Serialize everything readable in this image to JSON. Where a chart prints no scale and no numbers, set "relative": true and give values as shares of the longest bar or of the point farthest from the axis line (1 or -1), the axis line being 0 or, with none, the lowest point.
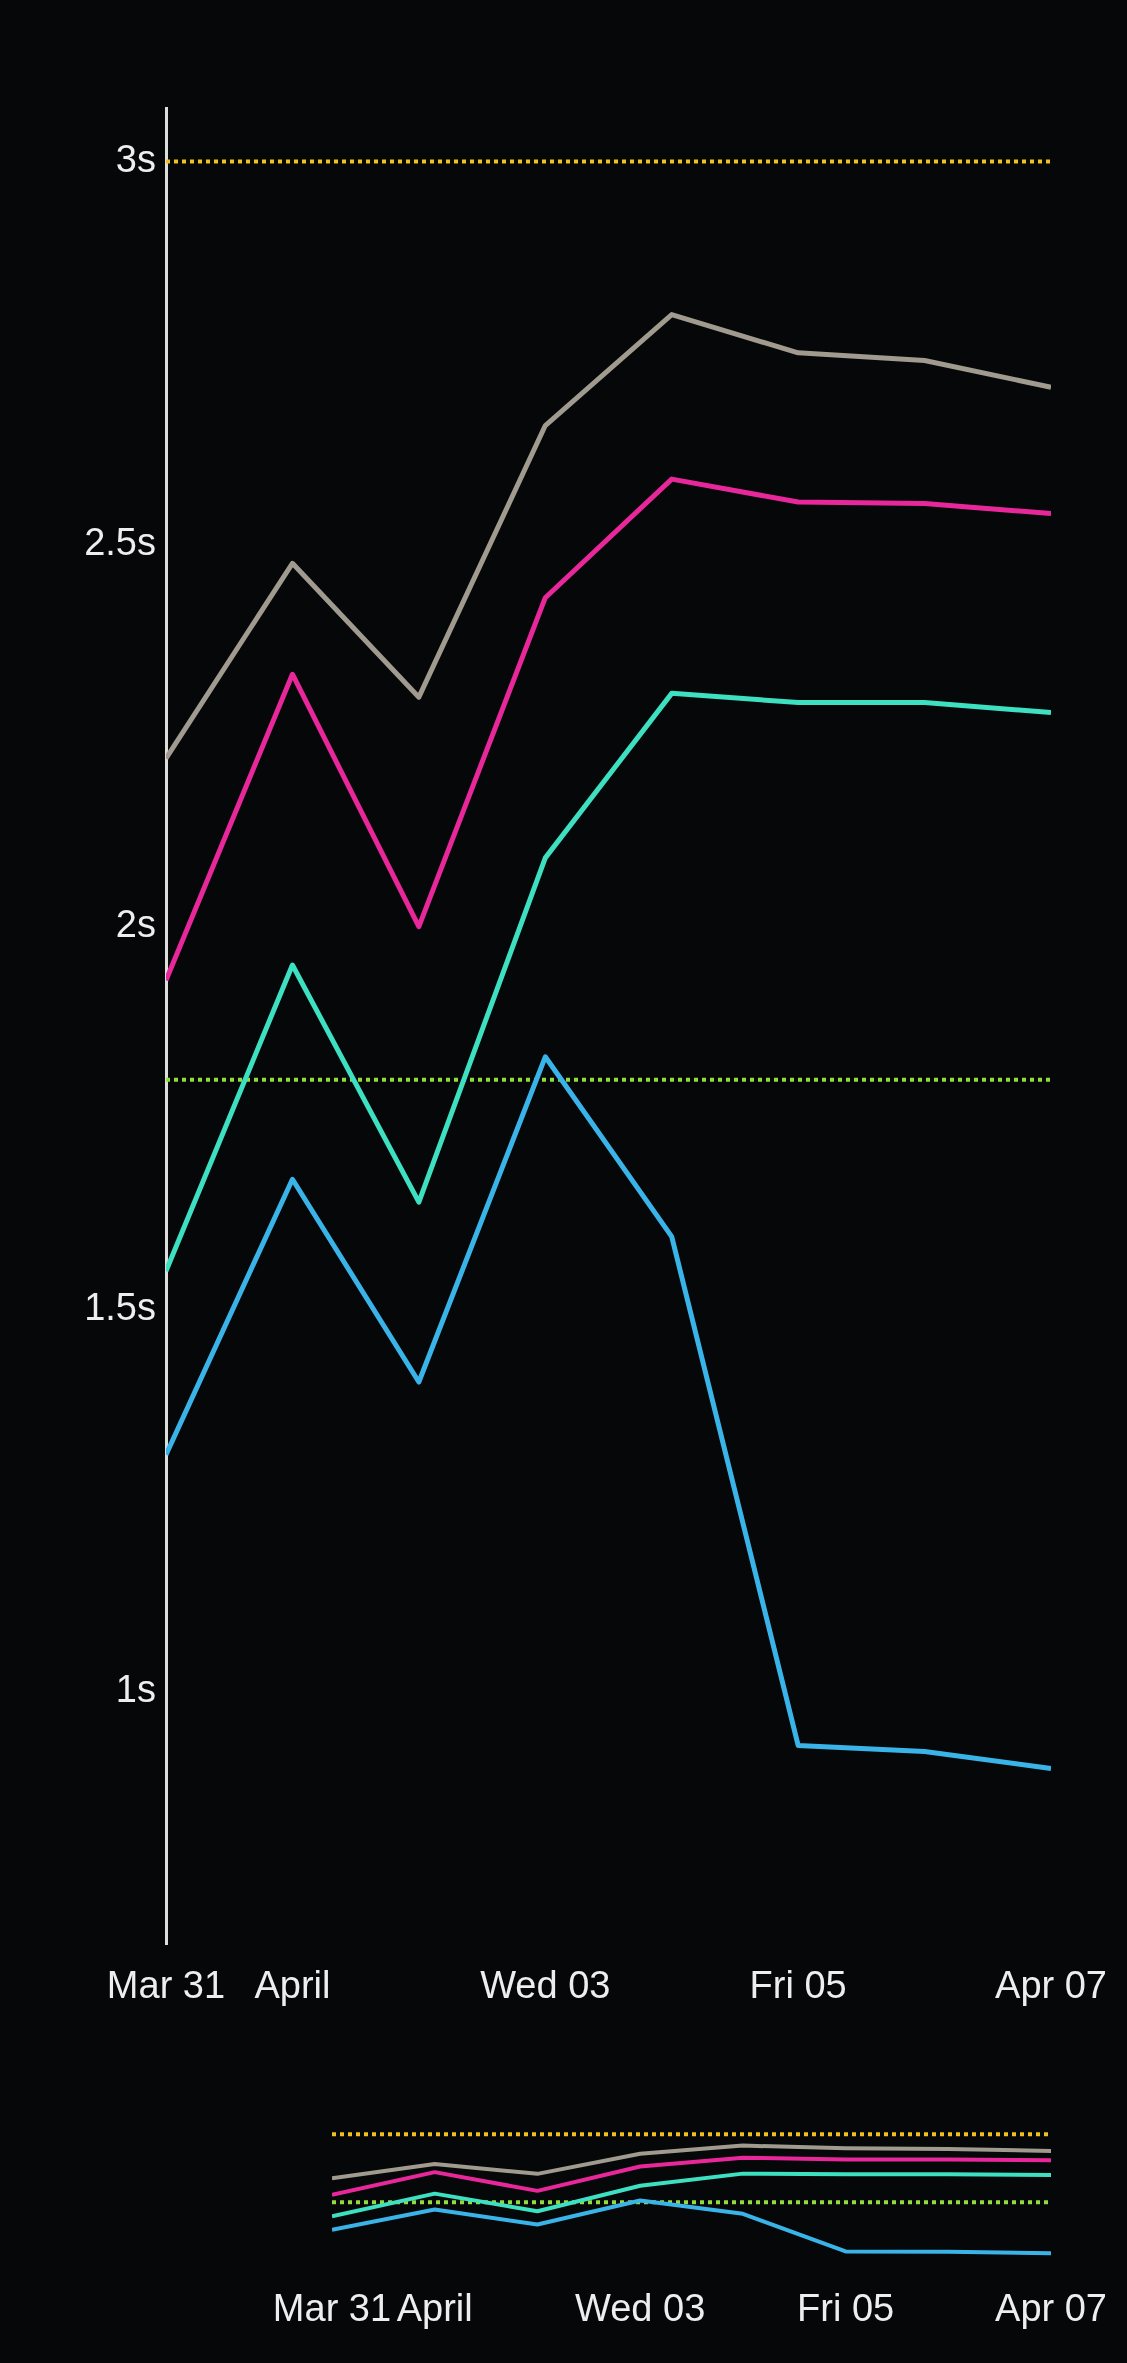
{
  "chart_data": [
    {
      "type": "line",
      "x": [
        "--03-31",
        "--04-01",
        "--04-02",
        "--04-03",
        "--04-04",
        "--04-05",
        "--04-06",
        "--04-07"
      ],
      "series": [
        {
          "color": "#a09a8f",
          "values": [
            2.22,
            2.475,
            2.3,
            2.655,
            2.8,
            2.75,
            2.74,
            2.705
          ]
        },
        {
          "color": "#e8289a",
          "values": [
            1.93,
            2.33,
            2.0,
            2.43,
            2.585,
            2.555,
            2.553,
            2.54
          ]
        },
        {
          "color": "#3de0c0",
          "values": [
            1.55,
            1.95,
            1.64,
            2.09,
            2.305,
            2.293,
            2.293,
            2.28
          ]
        },
        {
          "color": "#3ab4e8",
          "values": [
            1.31,
            1.67,
            1.405,
            1.83,
            1.595,
            0.93,
            0.922,
            0.9
          ]
        }
      ],
      "xlim": [
        "--03-31",
        "--04-07"
      ],
      "xticks": [
        {
          "value": "--03-31",
          "label": "Mar 31"
        },
        {
          "value": "--04-01",
          "label": "April"
        },
        {
          "value": "--04-03",
          "label": "Wed 03"
        },
        {
          "value": "--04-05",
          "label": "Fri 05"
        },
        {
          "value": "--04-07",
          "label": "Apr 07"
        }
      ],
      "ylim": [
        0.67,
        3.07
      ],
      "yticks": [
        {
          "value": 1,
          "label": "1s"
        },
        {
          "value": 1.5,
          "label": "1.5s"
        },
        {
          "value": 2,
          "label": "2s"
        },
        {
          "value": 2.5,
          "label": "2.5s"
        },
        {
          "value": 3,
          "label": "3s"
        }
      ],
      "ref_lines": [
        {
          "axis": "y",
          "value": 3,
          "color": "#f0c020",
          "line_style": "dotted"
        },
        {
          "axis": "y",
          "value": 1.8,
          "color": "#8fdc3c",
          "line_style": "dotted"
        }
      ],
      "grid": false,
      "legend": false,
      "marker": "none",
      "line_style": "solid"
    },
    {
      "type": "line",
      "x": [
        "--03-31",
        "--04-01",
        "--04-02",
        "--04-03",
        "--04-04",
        "--04-05",
        "--04-06",
        "--04-07"
      ],
      "series": [
        {
          "color": "#a09a8f",
          "values": [
            0.695,
            0.829,
            0.737,
            0.924,
            1,
            0.974,
            0.968,
            0.95
          ]
        },
        {
          "color": "#e8289a",
          "values": [
            0.542,
            0.753,
            0.579,
            0.805,
            0.887,
            0.871,
            0.87,
            0.863
          ]
        },
        {
          "color": "#3de0c0",
          "values": [
            0.342,
            0.553,
            0.389,
            0.626,
            0.739,
            0.733,
            0.733,
            0.726
          ]
        },
        {
          "color": "#3ab4e8",
          "values": [
            0.216,
            0.405,
            0.266,
            0.489,
            0.366,
            0.016,
            0.012,
            0
          ]
        }
      ],
      "xlim": [
        "--03-31",
        "--04-07"
      ],
      "xticks": [
        {
          "value": "--03-31",
          "label": "Mar 31"
        },
        {
          "value": "--04-01",
          "label": "April"
        },
        {
          "value": "--04-03",
          "label": "Wed 03"
        },
        {
          "value": "--04-05",
          "label": "Fri 05"
        },
        {
          "value": "--04-07",
          "label": "Apr 07"
        }
      ],
      "relative": true,
      "ref_lines": [
        {
          "axis": "y",
          "value": 1.105,
          "color": "#f0c020",
          "line_style": "dotted"
        },
        {
          "axis": "y",
          "value": 0.474,
          "color": "#8fdc3c",
          "line_style": "dotted"
        }
      ],
      "tick_labels": "x",
      "grid": false,
      "legend": false,
      "marker": "none",
      "line_style": "solid"
    }
  ]
}
